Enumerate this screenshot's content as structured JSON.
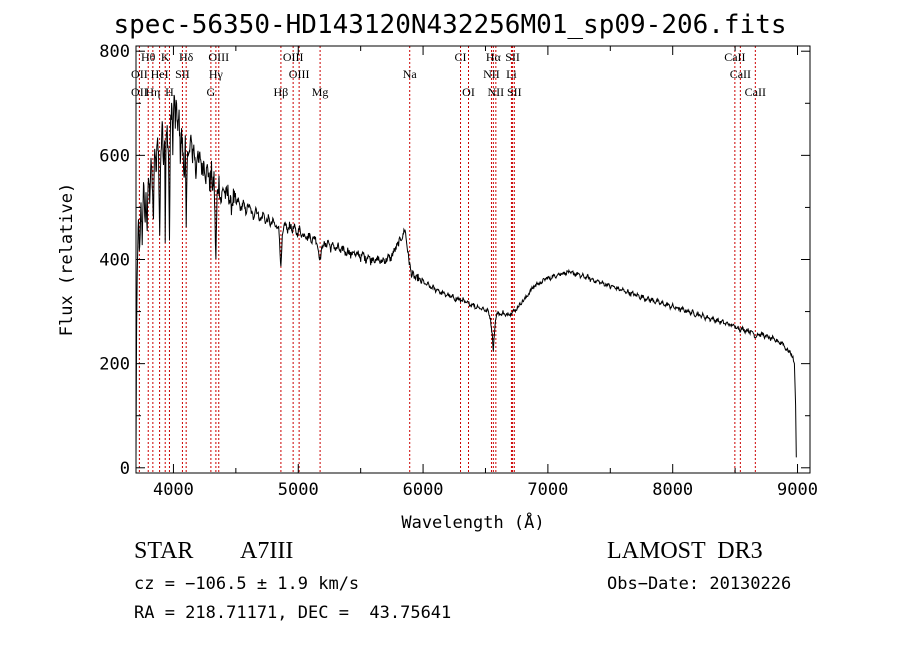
{
  "chart_data": {
    "type": "line",
    "title": "spec-56350-HD143120N432256M01_sp09-206.fits",
    "xlabel": "Wavelength (Å)",
    "ylabel": "Flux (relative)",
    "xlim": [
      3700,
      9100
    ],
    "ylim": [
      -10,
      810
    ],
    "xticks": [
      4000,
      5000,
      6000,
      7000,
      8000,
      9000
    ],
    "yticks": [
      0,
      200,
      400,
      600,
      800
    ],
    "line_color": "#000000",
    "marker_color": "#cc0000",
    "spectrum": [
      [
        3700,
        20
      ],
      [
        3705,
        260
      ],
      [
        3710,
        380
      ],
      [
        3720,
        470
      ],
      [
        3730,
        410
      ],
      [
        3740,
        500
      ],
      [
        3750,
        440
      ],
      [
        3760,
        560
      ],
      [
        3770,
        470
      ],
      [
        3780,
        520
      ],
      [
        3790,
        460
      ],
      [
        3800,
        560
      ],
      [
        3810,
        520
      ],
      [
        3820,
        600
      ],
      [
        3830,
        540
      ],
      [
        3840,
        480
      ],
      [
        3850,
        620
      ],
      [
        3860,
        560
      ],
      [
        3870,
        640
      ],
      [
        3880,
        600
      ],
      [
        3890,
        450
      ],
      [
        3900,
        610
      ],
      [
        3910,
        680
      ],
      [
        3920,
        590
      ],
      [
        3930,
        640
      ],
      [
        3934,
        420
      ],
      [
        3940,
        620
      ],
      [
        3950,
        650
      ],
      [
        3960,
        600
      ],
      [
        3968,
        430
      ],
      [
        3975,
        640
      ],
      [
        3985,
        700
      ],
      [
        3995,
        620
      ],
      [
        4005,
        720
      ],
      [
        4015,
        660
      ],
      [
        4025,
        700
      ],
      [
        4035,
        640
      ],
      [
        4045,
        680
      ],
      [
        4055,
        600
      ],
      [
        4065,
        640
      ],
      [
        4075,
        610
      ],
      [
        4085,
        560
      ],
      [
        4095,
        630
      ],
      [
        4102,
        450
      ],
      [
        4110,
        580
      ],
      [
        4120,
        620
      ],
      [
        4130,
        600
      ],
      [
        4140,
        640
      ],
      [
        4150,
        590
      ],
      [
        4160,
        620
      ],
      [
        4170,
        600
      ],
      [
        4180,
        560
      ],
      [
        4190,
        610
      ],
      [
        4200,
        580
      ],
      [
        4215,
        600
      ],
      [
        4230,
        570
      ],
      [
        4245,
        590
      ],
      [
        4260,
        560
      ],
      [
        4275,
        580
      ],
      [
        4290,
        540
      ],
      [
        4305,
        570
      ],
      [
        4315,
        530
      ],
      [
        4325,
        560
      ],
      [
        4340,
        400
      ],
      [
        4350,
        520
      ],
      [
        4365,
        550
      ],
      [
        4380,
        510
      ],
      [
        4400,
        540
      ],
      [
        4420,
        520
      ],
      [
        4440,
        530
      ],
      [
        4460,
        500
      ],
      [
        4480,
        520
      ],
      [
        4500,
        505
      ],
      [
        4520,
        515
      ],
      [
        4540,
        495
      ],
      [
        4560,
        510
      ],
      [
        4580,
        490
      ],
      [
        4600,
        505
      ],
      [
        4620,
        495
      ],
      [
        4640,
        480
      ],
      [
        4660,
        500
      ],
      [
        4680,
        485
      ],
      [
        4700,
        475
      ],
      [
        4720,
        490
      ],
      [
        4740,
        470
      ],
      [
        4760,
        480
      ],
      [
        4780,
        465
      ],
      [
        4800,
        475
      ],
      [
        4820,
        460
      ],
      [
        4840,
        468
      ],
      [
        4850,
        440
      ],
      [
        4861,
        380
      ],
      [
        4872,
        440
      ],
      [
        4885,
        460
      ],
      [
        4900,
        470
      ],
      [
        4915,
        450
      ],
      [
        4930,
        470
      ],
      [
        4950,
        455
      ],
      [
        4970,
        462
      ],
      [
        4990,
        448
      ],
      [
        5010,
        460
      ],
      [
        5030,
        445
      ],
      [
        5050,
        452
      ],
      [
        5070,
        440
      ],
      [
        5090,
        448
      ],
      [
        5110,
        435
      ],
      [
        5130,
        445
      ],
      [
        5150,
        432
      ],
      [
        5167,
        410
      ],
      [
        5175,
        400
      ],
      [
        5183,
        412
      ],
      [
        5200,
        432
      ],
      [
        5220,
        425
      ],
      [
        5240,
        437
      ],
      [
        5260,
        420
      ],
      [
        5280,
        430
      ],
      [
        5300,
        418
      ],
      [
        5320,
        426
      ],
      [
        5340,
        412
      ],
      [
        5360,
        424
      ],
      [
        5380,
        410
      ],
      [
        5400,
        420
      ],
      [
        5420,
        406
      ],
      [
        5440,
        418
      ],
      [
        5460,
        404
      ],
      [
        5480,
        414
      ],
      [
        5500,
        402
      ],
      [
        5520,
        412
      ],
      [
        5540,
        398
      ],
      [
        5560,
        410
      ],
      [
        5580,
        396
      ],
      [
        5600,
        406
      ],
      [
        5620,
        394
      ],
      [
        5640,
        404
      ],
      [
        5660,
        392
      ],
      [
        5680,
        402
      ],
      [
        5700,
        396
      ],
      [
        5720,
        406
      ],
      [
        5740,
        400
      ],
      [
        5760,
        414
      ],
      [
        5780,
        420
      ],
      [
        5800,
        430
      ],
      [
        5820,
        440
      ],
      [
        5840,
        445
      ],
      [
        5850,
        460
      ],
      [
        5860,
        450
      ],
      [
        5870,
        430
      ],
      [
        5880,
        410
      ],
      [
        5890,
        395
      ],
      [
        5900,
        380
      ],
      [
        5910,
        370
      ],
      [
        5920,
        372
      ],
      [
        5940,
        362
      ],
      [
        5960,
        366
      ],
      [
        5980,
        356
      ],
      [
        6000,
        360
      ],
      [
        6020,
        350
      ],
      [
        6040,
        354
      ],
      [
        6060,
        344
      ],
      [
        6080,
        348
      ],
      [
        6100,
        340
      ],
      [
        6120,
        344
      ],
      [
        6140,
        334
      ],
      [
        6160,
        338
      ],
      [
        6180,
        330
      ],
      [
        6200,
        334
      ],
      [
        6220,
        326
      ],
      [
        6240,
        330
      ],
      [
        6260,
        322
      ],
      [
        6280,
        326
      ],
      [
        6300,
        320
      ],
      [
        6320,
        324
      ],
      [
        6340,
        315
      ],
      [
        6360,
        318
      ],
      [
        6380,
        312
      ],
      [
        6400,
        316
      ],
      [
        6420,
        306
      ],
      [
        6440,
        312
      ],
      [
        6460,
        304
      ],
      [
        6480,
        308
      ],
      [
        6500,
        300
      ],
      [
        6520,
        303
      ],
      [
        6540,
        285
      ],
      [
        6555,
        255
      ],
      [
        6563,
        225
      ],
      [
        6572,
        262
      ],
      [
        6585,
        290
      ],
      [
        6600,
        300
      ],
      [
        6620,
        292
      ],
      [
        6640,
        300
      ],
      [
        6660,
        290
      ],
      [
        6680,
        298
      ],
      [
        6700,
        294
      ],
      [
        6720,
        304
      ],
      [
        6740,
        300
      ],
      [
        6760,
        310
      ],
      [
        6780,
        315
      ],
      [
        6800,
        320
      ],
      [
        6820,
        326
      ],
      [
        6840,
        332
      ],
      [
        6860,
        340
      ],
      [
        6880,
        346
      ],
      [
        6900,
        350
      ],
      [
        6920,
        356
      ],
      [
        6940,
        352
      ],
      [
        6960,
        360
      ],
      [
        6980,
        362
      ],
      [
        7000,
        366
      ],
      [
        7020,
        362
      ],
      [
        7040,
        370
      ],
      [
        7060,
        366
      ],
      [
        7080,
        374
      ],
      [
        7100,
        370
      ],
      [
        7120,
        376
      ],
      [
        7140,
        372
      ],
      [
        7160,
        378
      ],
      [
        7180,
        372
      ],
      [
        7200,
        376
      ],
      [
        7220,
        370
      ],
      [
        7240,
        374
      ],
      [
        7260,
        366
      ],
      [
        7280,
        370
      ],
      [
        7300,
        364
      ],
      [
        7320,
        368
      ],
      [
        7340,
        360
      ],
      [
        7360,
        364
      ],
      [
        7380,
        356
      ],
      [
        7400,
        360
      ],
      [
        7420,
        354
      ],
      [
        7440,
        356
      ],
      [
        7460,
        350
      ],
      [
        7480,
        354
      ],
      [
        7500,
        346
      ],
      [
        7520,
        350
      ],
      [
        7540,
        344
      ],
      [
        7560,
        346
      ],
      [
        7580,
        340
      ],
      [
        7600,
        343
      ],
      [
        7620,
        336
      ],
      [
        7640,
        340
      ],
      [
        7660,
        333
      ],
      [
        7680,
        336
      ],
      [
        7700,
        330
      ],
      [
        7720,
        333
      ],
      [
        7740,
        326
      ],
      [
        7760,
        330
      ],
      [
        7780,
        323
      ],
      [
        7800,
        327
      ],
      [
        7820,
        320
      ],
      [
        7840,
        324
      ],
      [
        7860,
        317
      ],
      [
        7880,
        321
      ],
      [
        7900,
        314
      ],
      [
        7920,
        318
      ],
      [
        7940,
        311
      ],
      [
        7960,
        315
      ],
      [
        7980,
        308
      ],
      [
        8000,
        312
      ],
      [
        8020,
        305
      ],
      [
        8040,
        309
      ],
      [
        8060,
        302
      ],
      [
        8080,
        306
      ],
      [
        8100,
        300
      ],
      [
        8120,
        303
      ],
      [
        8140,
        296
      ],
      [
        8160,
        300
      ],
      [
        8180,
        293
      ],
      [
        8200,
        297
      ],
      [
        8220,
        290
      ],
      [
        8240,
        294
      ],
      [
        8260,
        287
      ],
      [
        8280,
        291
      ],
      [
        8300,
        284
      ],
      [
        8320,
        288
      ],
      [
        8340,
        281
      ],
      [
        8360,
        285
      ],
      [
        8380,
        278
      ],
      [
        8400,
        282
      ],
      [
        8420,
        275
      ],
      [
        8440,
        279
      ],
      [
        8460,
        272
      ],
      [
        8480,
        276
      ],
      [
        8500,
        268
      ],
      [
        8520,
        272
      ],
      [
        8540,
        264
      ],
      [
        8560,
        268
      ],
      [
        8580,
        262
      ],
      [
        8600,
        266
      ],
      [
        8620,
        260
      ],
      [
        8640,
        262
      ],
      [
        8662,
        250
      ],
      [
        8680,
        258
      ],
      [
        8700,
        254
      ],
      [
        8720,
        258
      ],
      [
        8740,
        250
      ],
      [
        8760,
        254
      ],
      [
        8780,
        246
      ],
      [
        8800,
        250
      ],
      [
        8820,
        242
      ],
      [
        8840,
        246
      ],
      [
        8860,
        238
      ],
      [
        8880,
        242
      ],
      [
        8900,
        230
      ],
      [
        8920,
        226
      ],
      [
        8940,
        222
      ],
      [
        8960,
        214
      ],
      [
        8975,
        200
      ],
      [
        8985,
        120
      ],
      [
        8990,
        20
      ]
    ],
    "lines_row1": [
      {
        "label": "Hθ",
        "x": 3798
      },
      {
        "label": "K",
        "x": 3934
      },
      {
        "label": "Hδ",
        "x": 4102
      },
      {
        "label": "OIII",
        "x": 4363
      },
      {
        "label": "OIII",
        "x": 4959
      },
      {
        "label": "CI",
        "x": 6300
      },
      {
        "label": "Hα",
        "x": 6563
      },
      {
        "label": "SII",
        "x": 6717
      },
      {
        "label": "CaII",
        "x": 8498
      }
    ],
    "lines_row2": [
      {
        "label": "OII",
        "x": 3727
      },
      {
        "label": "HeI",
        "x": 3889
      },
      {
        "label": "SII",
        "x": 4072
      },
      {
        "label": "Hγ",
        "x": 4340
      },
      {
        "label": "OIII",
        "x": 5007
      },
      {
        "label": "Na",
        "x": 5893
      },
      {
        "label": "NII",
        "x": 6548
      },
      {
        "label": "Li",
        "x": 6708
      },
      {
        "label": "CaII",
        "x": 8542
      }
    ],
    "lines_row3": [
      {
        "label": "OII",
        "x": 3727
      },
      {
        "label": "Hη",
        "x": 3835
      },
      {
        "label": "H",
        "x": 3968
      },
      {
        "label": "G",
        "x": 4300
      },
      {
        "label": "Hβ",
        "x": 4861
      },
      {
        "label": "Mg",
        "x": 5175
      },
      {
        "label": "OI",
        "x": 6364
      },
      {
        "label": "NII",
        "x": 6583
      },
      {
        "label": "SII",
        "x": 6731
      },
      {
        "label": "CaII",
        "x": 8662
      }
    ]
  },
  "info": {
    "object_class": "STAR",
    "subclass": "A7III",
    "survey": "LAMOST  DR3",
    "cz": "cz = −106.5 ± 1.9 km/s",
    "obs_date": "Obs−Date: 20130226",
    "radec": "RA = 218.71171, DEC =  43.75641"
  }
}
